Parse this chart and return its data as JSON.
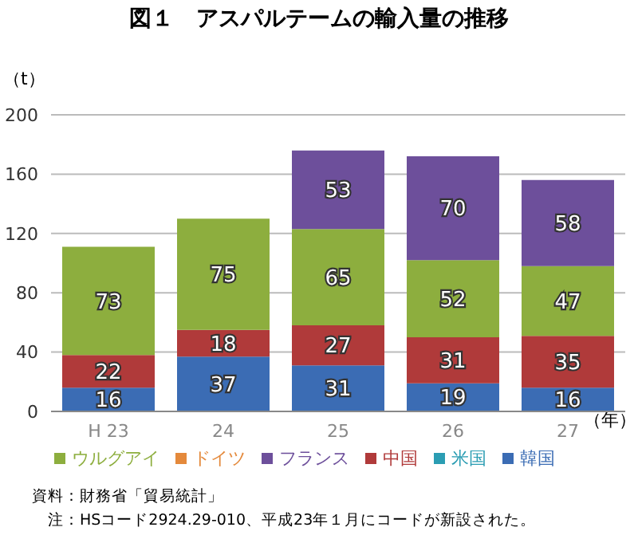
{
  "chart_data": {
    "type": "bar",
    "stacked": true,
    "title": "図１　アスパルテームの輸入量の推移",
    "ylabel": "（t）",
    "xlabel": "（年）",
    "categories": [
      "H 23",
      "24",
      "25",
      "26",
      "27"
    ],
    "series": [
      {
        "name": "韓国",
        "color": "#3b6cb4",
        "values": [
          16,
          37,
          31,
          19,
          16
        ]
      },
      {
        "name": "中国",
        "color": "#b03a3a",
        "values": [
          22,
          18,
          27,
          31,
          35
        ]
      },
      {
        "name": "ウルグアイ",
        "color": "#8dae3e",
        "values": [
          73,
          75,
          65,
          52,
          47
        ]
      },
      {
        "name": "フランス",
        "color": "#6d4f9b",
        "values": [
          null,
          null,
          53,
          70,
          58
        ]
      },
      {
        "name": "米国",
        "color": "#2b9db3",
        "values": [
          null,
          null,
          null,
          null,
          null
        ]
      },
      {
        "name": "ドイツ",
        "color": "#e4893b",
        "values": [
          null,
          null,
          null,
          null,
          null
        ]
      }
    ],
    "ylim": [
      0,
      200
    ],
    "yticks": [
      0,
      40,
      80,
      120,
      160,
      200
    ],
    "grid": "y",
    "legend": "bottom",
    "data_labels": true,
    "annotations": [
      "資料：財務省「貿易統計」",
      "注：HSコード2924.29-010、平成23年１月にコードが新設された。"
    ]
  }
}
